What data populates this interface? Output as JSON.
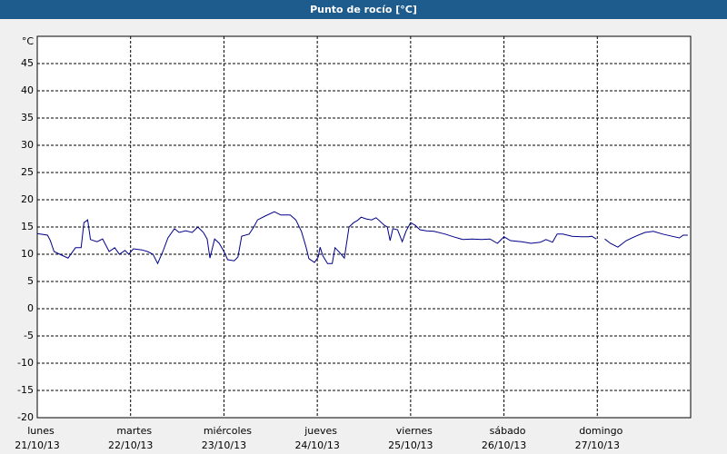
{
  "chart_data": {
    "type": "line",
    "title": "Punto de rocío [°C]",
    "ylabel": "°C",
    "x": [
      0,
      0.11,
      0.14,
      0.18,
      0.24,
      0.33,
      0.41,
      0.47,
      0.5,
      0.54,
      0.57,
      0.64,
      0.7,
      0.77,
      0.83,
      0.88,
      0.94,
      0.98,
      1.03,
      1.12,
      1.18,
      1.24,
      1.29,
      1.35,
      1.4,
      1.47,
      1.52,
      1.59,
      1.66,
      1.72,
      1.78,
      1.82,
      1.85,
      1.9,
      1.95,
      2.0,
      2.04,
      2.11,
      2.15,
      2.19,
      2.27,
      2.32,
      2.36,
      2.44,
      2.54,
      2.61,
      2.71,
      2.77,
      2.83,
      2.88,
      2.91,
      2.97,
      3.01,
      3.03,
      3.06,
      3.11,
      3.16,
      3.19,
      3.24,
      3.29,
      3.34,
      3.39,
      3.43,
      3.47,
      3.52,
      3.58,
      3.63,
      3.72,
      3.75,
      3.78,
      3.81,
      3.86,
      3.91,
      3.95,
      4.0,
      4.05,
      4.1,
      4.17,
      4.25,
      4.37,
      4.46,
      4.56,
      4.66,
      4.76,
      4.85,
      4.93,
      5.0,
      5.07,
      5.19,
      5.29,
      5.39,
      5.45,
      5.52,
      5.57,
      5.63,
      5.73,
      5.83,
      5.9,
      5.94,
      5.99,
      6.03,
      6.08,
      6.14,
      6.22,
      6.31,
      6.41,
      6.51,
      6.6,
      6.7,
      6.8,
      6.88,
      6.92,
      6.97
    ],
    "series": [
      {
        "color": "#00008b",
        "values": [
          13.8,
          13.5,
          12.5,
          10.5,
          10,
          9.3,
          11.2,
          11.2,
          15.8,
          16.3,
          12.7,
          12.3,
          12.8,
          10.5,
          11.2,
          10,
          10.7,
          10,
          11,
          10.8,
          10.5,
          10,
          8.3,
          10.7,
          13,
          14.7,
          14,
          14.3,
          14,
          15,
          14,
          12.8,
          9.3,
          12.8,
          12,
          10.5,
          9,
          8.8,
          9.5,
          13.3,
          13.7,
          15,
          16.3,
          17,
          17.8,
          17.2,
          17.2,
          16.3,
          14.2,
          11.3,
          9.2,
          8.5,
          9.5,
          11.3,
          9.7,
          8.3,
          8.3,
          11.2,
          10.3,
          9.3,
          15,
          15.8,
          16.2,
          16.8,
          16.5,
          16.3,
          16.7,
          15.3,
          15,
          12.5,
          14.7,
          14.5,
          12.3,
          14.2,
          15.8,
          15.3,
          14.5,
          14.3,
          14.2,
          13.7,
          13.2,
          12.7,
          12.8,
          12.7,
          12.8,
          12,
          13.2,
          12.5,
          12.3,
          12,
          12.2,
          12.7,
          12.2,
          13.7,
          13.7,
          13.3,
          13.2,
          13.2,
          13.3,
          12.8,
          null,
          12.8,
          12,
          11.3,
          12.5,
          13.3,
          14,
          14.2,
          13.7,
          13.3,
          13,
          13.5,
          13.5
        ]
      }
    ],
    "xlim": [
      0,
      7
    ],
    "xticks": [
      {
        "value": 0,
        "label": "lunes"
      },
      {
        "value": 1,
        "label": "martes"
      },
      {
        "value": 2,
        "label": "miércoles"
      },
      {
        "value": 3,
        "label": "jueves"
      },
      {
        "value": 4,
        "label": "viernes"
      },
      {
        "value": 5,
        "label": "sábado"
      },
      {
        "value": 6,
        "label": "domingo"
      }
    ],
    "xtick_dates": [
      "21/10/13",
      "22/10/13",
      "23/10/13",
      "24/10/13",
      "25/10/13",
      "26/10/13",
      "27/10/13"
    ],
    "ylim": [
      -20,
      50
    ],
    "yticks": [
      -20,
      -15,
      -10,
      -5,
      0,
      5,
      10,
      15,
      20,
      25,
      30,
      35,
      40,
      45
    ],
    "grid": true
  }
}
